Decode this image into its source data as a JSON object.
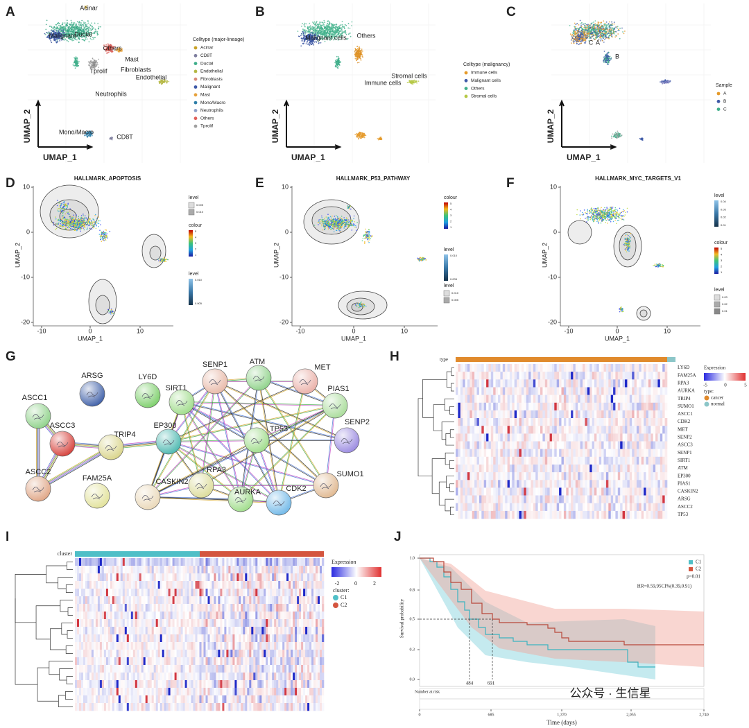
{
  "panels": {
    "a": {
      "label": "A",
      "clusters": [
        "Acinar",
        "Malignant",
        "Ductal",
        "Others",
        "Mast",
        "Tprolif",
        "Fibroblasts",
        "Endothelial",
        "Neutrophils",
        "Mono/Macro",
        "CD8T"
      ],
      "legend_title": "Celltype (major-lineage)",
      "legend": [
        {
          "name": "Acinar",
          "color": "#c9a227"
        },
        {
          "name": "CD8T",
          "color": "#7f7f9f"
        },
        {
          "name": "Ductal",
          "color": "#3fae8a"
        },
        {
          "name": "Endothelial",
          "color": "#b5b845"
        },
        {
          "name": "Fibroblasts",
          "color": "#d98a7a"
        },
        {
          "name": "Malignant",
          "color": "#3f5aa8"
        },
        {
          "name": "Mast",
          "color": "#e6a13c"
        },
        {
          "name": "Mono/Macro",
          "color": "#2f7fa8"
        },
        {
          "name": "Neutrophils",
          "color": "#8fa0c8"
        },
        {
          "name": "Others",
          "color": "#e0605a"
        },
        {
          "name": "Tprolif",
          "color": "#a0a0a0"
        }
      ],
      "x_label": "UMAP_1",
      "y_label": "UMAP_2"
    },
    "b": {
      "label": "B",
      "clusters": [
        "Malignant cells",
        "Others",
        "Stromal cells",
        "Immune cells"
      ],
      "legend_title": "Celltype (malignancy)",
      "legend": [
        {
          "name": "Immune cells",
          "color": "#e59a2a"
        },
        {
          "name": "Malignant cells",
          "color": "#3f5aa8"
        },
        {
          "name": "Others",
          "color": "#3fae8a"
        },
        {
          "name": "Stromal cells",
          "color": "#b5c845"
        }
      ],
      "x_label": "UMAP_1",
      "y_label": "UMAP_2"
    },
    "c": {
      "label": "C",
      "clusters": [
        "C",
        "A",
        "B"
      ],
      "legend_title": "Sample",
      "legend": [
        {
          "name": "A",
          "color": "#e59a2a"
        },
        {
          "name": "B",
          "color": "#3f5aa8"
        },
        {
          "name": "C",
          "color": "#3fae8a"
        }
      ],
      "x_label": "UMAP_1",
      "y_label": "UMAP_2"
    },
    "d": {
      "label": "D",
      "title": "HALLMARK_APOPTOSIS",
      "x_label": "UMAP_1",
      "y_label": "UMAP_2",
      "xticks": [
        "-10",
        "0",
        "10"
      ],
      "yticks": [
        "10",
        "0",
        "-10",
        "-20"
      ],
      "legends": [
        {
          "title": "level",
          "labels": [
            "0.005",
            "0.010"
          ]
        },
        {
          "title": "colour",
          "labels": [
            "5",
            "4",
            "3",
            "2",
            "1"
          ]
        },
        {
          "title": "level",
          "labels": [
            "0.010",
            "0.005"
          ]
        }
      ]
    },
    "e": {
      "label": "E",
      "title": "HALLMARK_P53_PATHWAY",
      "x_label": "UMAP_1",
      "y_label": "UMAP_2",
      "xticks": [
        "-10",
        "0",
        "10"
      ],
      "yticks": [
        "10",
        "0",
        "-10",
        "-20"
      ],
      "legends": [
        {
          "title": "colour",
          "labels": [
            "5",
            "4",
            "3",
            "2",
            "1"
          ]
        },
        {
          "title": "level",
          "labels": [
            "0.010",
            "0.005"
          ]
        },
        {
          "title": "level",
          "labels": [
            "0.010",
            "0.005"
          ]
        }
      ]
    },
    "f": {
      "label": "F",
      "title": "HALLMARK_MYC_TARGETS_V1",
      "x_label": "UMAP_1",
      "y_label": "UMAP_2",
      "xticks": [
        "-10",
        "0",
        "10"
      ],
      "yticks": [
        "10",
        "0",
        "-10",
        "-20"
      ],
      "legends": [
        {
          "title": "level",
          "labels": [
            "0.04",
            "0.03",
            "0.02",
            "0.01"
          ]
        },
        {
          "title": "colour",
          "labels": [
            "5",
            "4",
            "3",
            "2",
            "1"
          ]
        },
        {
          "title": "level",
          "labels": [
            "0.03",
            "0.02",
            "0.01"
          ]
        }
      ]
    },
    "g": {
      "label": "G",
      "nodes": [
        "ASCC1",
        "ARSG",
        "LY6D",
        "ASCC3",
        "TRIP4",
        "ASCC2",
        "FAM25A",
        "EP300",
        "SIRT1",
        "SENP1",
        "ATM",
        "MET",
        "PIAS1",
        "TP53",
        "SENP2",
        "CASKIN2",
        "RPA3",
        "AURKA",
        "CDK2",
        "SUMO1"
      ]
    },
    "h": {
      "label": "H",
      "annotation": "type",
      "genes": [
        "LY6D",
        "FAM25A",
        "RPA3",
        "AURKA",
        "TRIP4",
        "SUMO1",
        "ASCC1",
        "CDK2",
        "MET",
        "SENP2",
        "ASCC3",
        "SENP1",
        "SIRT1",
        "ATM",
        "EP300",
        "PIAS1",
        "CASKIN2",
        "ARSG",
        "ASCC2",
        "TP53"
      ],
      "legend_title": "Expression",
      "legend_ticks": [
        "-5",
        "0",
        "5"
      ],
      "type_title": "type:",
      "types": [
        {
          "name": "cancer",
          "color": "#e08a2c"
        },
        {
          "name": "normal",
          "color": "#8cc6c8"
        }
      ]
    },
    "i": {
      "label": "I",
      "annotation": "cluster",
      "legend_title": "Expression",
      "legend_ticks": [
        "-2",
        "0",
        "2"
      ],
      "cluster_title": "cluster:",
      "clusters": [
        {
          "name": "C1",
          "color": "#4fbfc7"
        },
        {
          "name": "C2",
          "color": "#d4553f"
        }
      ]
    },
    "j": {
      "label": "J",
      "y_label": "Survival probability",
      "x_label": "Time (days)",
      "yticks": [
        "1.0",
        "0.8",
        "0.5",
        "0.3",
        "0.0"
      ],
      "xticks": [
        "0",
        "685",
        "1,370",
        "2,055",
        "2,740"
      ],
      "legend": [
        "C1",
        "C2"
      ],
      "p_value": "p=0.01",
      "hr": "HR=0.59,95CI%(0.39,0.91)",
      "medians": [
        "484",
        "691"
      ],
      "risk_title": "Number at risk"
    }
  },
  "watermark": "公众号 · 生信星"
}
